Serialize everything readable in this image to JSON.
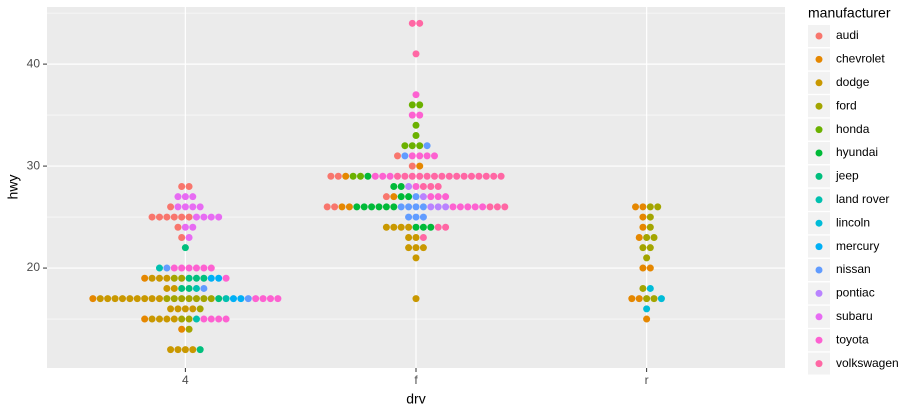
{
  "chart_data": {
    "type": "dotplot",
    "x_label": "drv",
    "y_label": "hwy",
    "legend_title": "manufacturer",
    "categories": [
      "4",
      "f",
      "r"
    ],
    "ylim": [
      10.2,
      45.6
    ],
    "yticks": [
      20,
      30,
      40
    ],
    "minor_yticks": [
      15,
      25,
      35,
      45
    ],
    "grid": true,
    "series": [
      {
        "name": "audi",
        "color": "#F8766D",
        "x": [
          "f",
          "f",
          "f",
          "f",
          "f",
          "f",
          "f",
          "4",
          "4",
          "4",
          "4",
          "4",
          "4",
          "4",
          "4",
          "4",
          "4",
          "4"
        ],
        "values": [
          29,
          29,
          31,
          30,
          26,
          26,
          27,
          26,
          25,
          28,
          28,
          25,
          25,
          25,
          25,
          24,
          25,
          23
        ]
      },
      {
        "name": "chevrolet",
        "color": "#E58700",
        "x": [
          "r",
          "r",
          "r",
          "r",
          "r",
          "r",
          "r",
          "r",
          "r",
          "r",
          "4",
          "4",
          "4",
          "4",
          "f",
          "f",
          "f",
          "f",
          "f"
        ],
        "values": [
          20,
          15,
          20,
          17,
          17,
          26,
          23,
          26,
          25,
          24,
          19,
          14,
          15,
          17,
          27,
          30,
          26,
          29,
          26
        ]
      },
      {
        "name": "dodge",
        "color": "#C99800",
        "x": [
          "f",
          "f",
          "f",
          "f",
          "f",
          "f",
          "f",
          "f",
          "f",
          "f",
          "f",
          "4",
          "4",
          "4",
          "4",
          "4",
          "4",
          "4",
          "4",
          "4",
          "4",
          "4",
          "4",
          "4",
          "4",
          "4",
          "4",
          "4",
          "4",
          "4",
          "4",
          "4",
          "4",
          "4",
          "4",
          "4",
          "4"
        ],
        "values": [
          24,
          24,
          22,
          22,
          24,
          24,
          17,
          22,
          21,
          23,
          23,
          19,
          18,
          17,
          17,
          19,
          19,
          12,
          17,
          15,
          17,
          17,
          12,
          17,
          16,
          18,
          15,
          16,
          12,
          15,
          16,
          17,
          15,
          17,
          17,
          16,
          12
        ]
      },
      {
        "name": "ford",
        "color": "#A3A500",
        "x": [
          "r",
          "r",
          "r",
          "r",
          "r",
          "r",
          "r",
          "r",
          "r",
          "r",
          "r",
          "r",
          "4",
          "4",
          "4",
          "4",
          "4",
          "4",
          "4",
          "4",
          "4",
          "4",
          "4",
          "4",
          "4"
        ],
        "values": [
          17,
          17,
          18,
          26,
          25,
          26,
          24,
          21,
          22,
          23,
          23,
          22,
          17,
          15,
          17,
          19,
          19,
          17,
          17,
          16,
          17,
          15,
          17,
          17,
          14
        ]
      },
      {
        "name": "honda",
        "color": "#6BB100",
        "x": [
          "f",
          "f",
          "f",
          "f",
          "f",
          "f",
          "f",
          "f",
          "f"
        ],
        "values": [
          32,
          33,
          32,
          29,
          32,
          34,
          36,
          36,
          29
        ]
      },
      {
        "name": "hyundai",
        "color": "#00BA38",
        "x": [
          "f",
          "f",
          "f",
          "f",
          "f",
          "f",
          "f",
          "f",
          "f",
          "f",
          "f",
          "f",
          "f",
          "f"
        ],
        "values": [
          26,
          27,
          26,
          26,
          28,
          26,
          26,
          26,
          29,
          28,
          27,
          24,
          24,
          24
        ]
      },
      {
        "name": "jeep",
        "color": "#00BF7D",
        "x": [
          "4",
          "4",
          "4",
          "4",
          "4",
          "4",
          "4",
          "4"
        ],
        "values": [
          19,
          22,
          18,
          18,
          17,
          19,
          19,
          12
        ]
      },
      {
        "name": "land rover",
        "color": "#00C0AF",
        "x": [
          "4",
          "4",
          "4",
          "4"
        ],
        "values": [
          15,
          17,
          20,
          18
        ]
      },
      {
        "name": "lincoln",
        "color": "#00BCD8",
        "x": [
          "r",
          "r",
          "r"
        ],
        "values": [
          17,
          16,
          18
        ]
      },
      {
        "name": "mercury",
        "color": "#00B0F6",
        "x": [
          "4",
          "4",
          "4",
          "4"
        ],
        "values": [
          19,
          17,
          17,
          19
        ]
      },
      {
        "name": "nissan",
        "color": "#619CFF",
        "x": [
          "f",
          "f",
          "f",
          "f",
          "f",
          "f",
          "f",
          "f",
          "f",
          "f",
          "4",
          "4",
          "4"
        ],
        "values": [
          31,
          32,
          27,
          26,
          26,
          25,
          25,
          26,
          26,
          25,
          17,
          20,
          18
        ]
      },
      {
        "name": "pontiac",
        "color": "#B983FF",
        "x": [
          "f",
          "f",
          "f",
          "f",
          "f"
        ],
        "values": [
          28,
          27,
          26,
          26,
          26
        ]
      },
      {
        "name": "subaru",
        "color": "#E76BF3",
        "x": [
          "4",
          "4",
          "4",
          "4",
          "4",
          "4",
          "4",
          "4",
          "4",
          "4",
          "4",
          "4",
          "4",
          "4"
        ],
        "values": [
          26,
          25,
          26,
          24,
          27,
          26,
          24,
          25,
          25,
          27,
          26,
          25,
          23,
          27
        ]
      },
      {
        "name": "toyota",
        "color": "#FD61D1",
        "x": [
          "4",
          "4",
          "4",
          "4",
          "4",
          "4",
          "4",
          "4",
          "4",
          "4",
          "4",
          "4",
          "4",
          "4",
          "4",
          "f",
          "f",
          "f",
          "f",
          "f",
          "f",
          "f",
          "f",
          "f",
          "f",
          "f",
          "f",
          "f",
          "f",
          "f",
          "f",
          "f",
          "f",
          "f"
        ],
        "values": [
          20,
          15,
          20,
          17,
          17,
          20,
          15,
          15,
          20,
          20,
          19,
          17,
          20,
          17,
          15,
          27,
          29,
          31,
          31,
          26,
          26,
          28,
          27,
          29,
          31,
          31,
          26,
          26,
          27,
          35,
          37,
          35,
          29,
          26
        ]
      },
      {
        "name": "volkswagen",
        "color": "#FF67A4",
        "x": [
          "f",
          "f",
          "f",
          "f",
          "f",
          "f",
          "f",
          "f",
          "f",
          "f",
          "f",
          "f",
          "f",
          "f",
          "f",
          "f",
          "f",
          "f",
          "f",
          "f",
          "f",
          "f",
          "f",
          "f",
          "f",
          "f",
          "f"
        ],
        "values": [
          29,
          29,
          28,
          29,
          24,
          44,
          29,
          26,
          29,
          29,
          29,
          29,
          23,
          24,
          44,
          41,
          29,
          26,
          28,
          29,
          29,
          29,
          29,
          29,
          28,
          29,
          26
        ]
      }
    ]
  }
}
